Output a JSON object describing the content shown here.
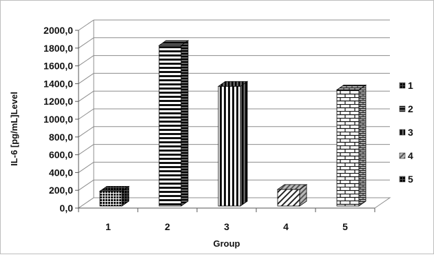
{
  "chart_data": {
    "type": "bar",
    "style": "3d-column",
    "categories": [
      "1",
      "2",
      "3",
      "4",
      "5"
    ],
    "values": [
      190,
      1830,
      1370,
      210,
      1330
    ],
    "xlabel": "Group",
    "ylabel": "IL-6 [pg/mL]Level",
    "ylim": [
      0,
      2000
    ],
    "ytick_step": 200,
    "ytick_labels": [
      "0,0",
      "200,0",
      "400,0",
      "600,0",
      "800,0",
      "1000,0",
      "1200,0",
      "1400,0",
      "1600,0",
      "1800,0",
      "2000,0"
    ],
    "grid": true,
    "legend": {
      "placement": "right",
      "entries": [
        "1",
        "2",
        "3",
        "4",
        "5"
      ]
    },
    "bar_patterns": [
      "dots",
      "horizontal-lines",
      "vertical-lines",
      "diagonal-lines",
      "bricks"
    ]
  }
}
